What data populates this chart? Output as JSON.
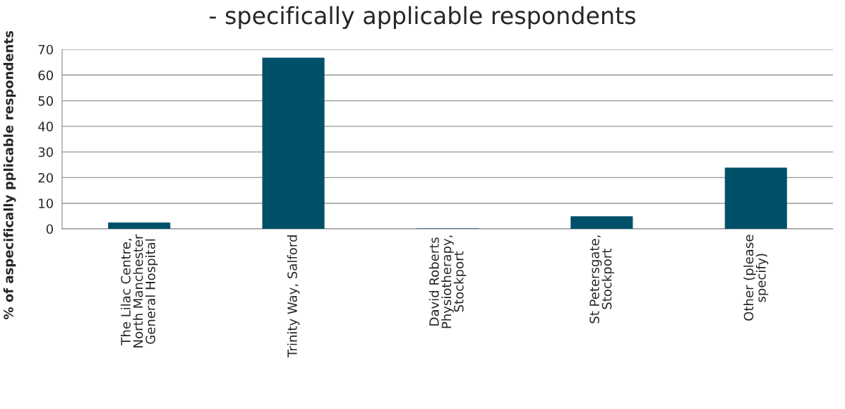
{
  "chart_data": {
    "type": "bar",
    "title": "- specifically applicable respondents",
    "ylabel": "% of aspecifically pplicable respondents",
    "categories": [
      "The Lilac Centre,\nNorth Manchester\nGeneral Hospital",
      "Trinity Way, Salford",
      "David Roberts\nPhysiotherapy,\nStockport",
      "St Petersgate,\nStockport",
      "Other (please\nspecify)"
    ],
    "values": [
      2.4,
      66.7,
      0,
      4.8,
      23.8
    ],
    "color": "#005069",
    "ylim": [
      0,
      70
    ],
    "yticks": [
      0,
      10,
      20,
      30,
      40,
      50,
      60,
      70
    ],
    "grid": "y",
    "legend": false
  }
}
